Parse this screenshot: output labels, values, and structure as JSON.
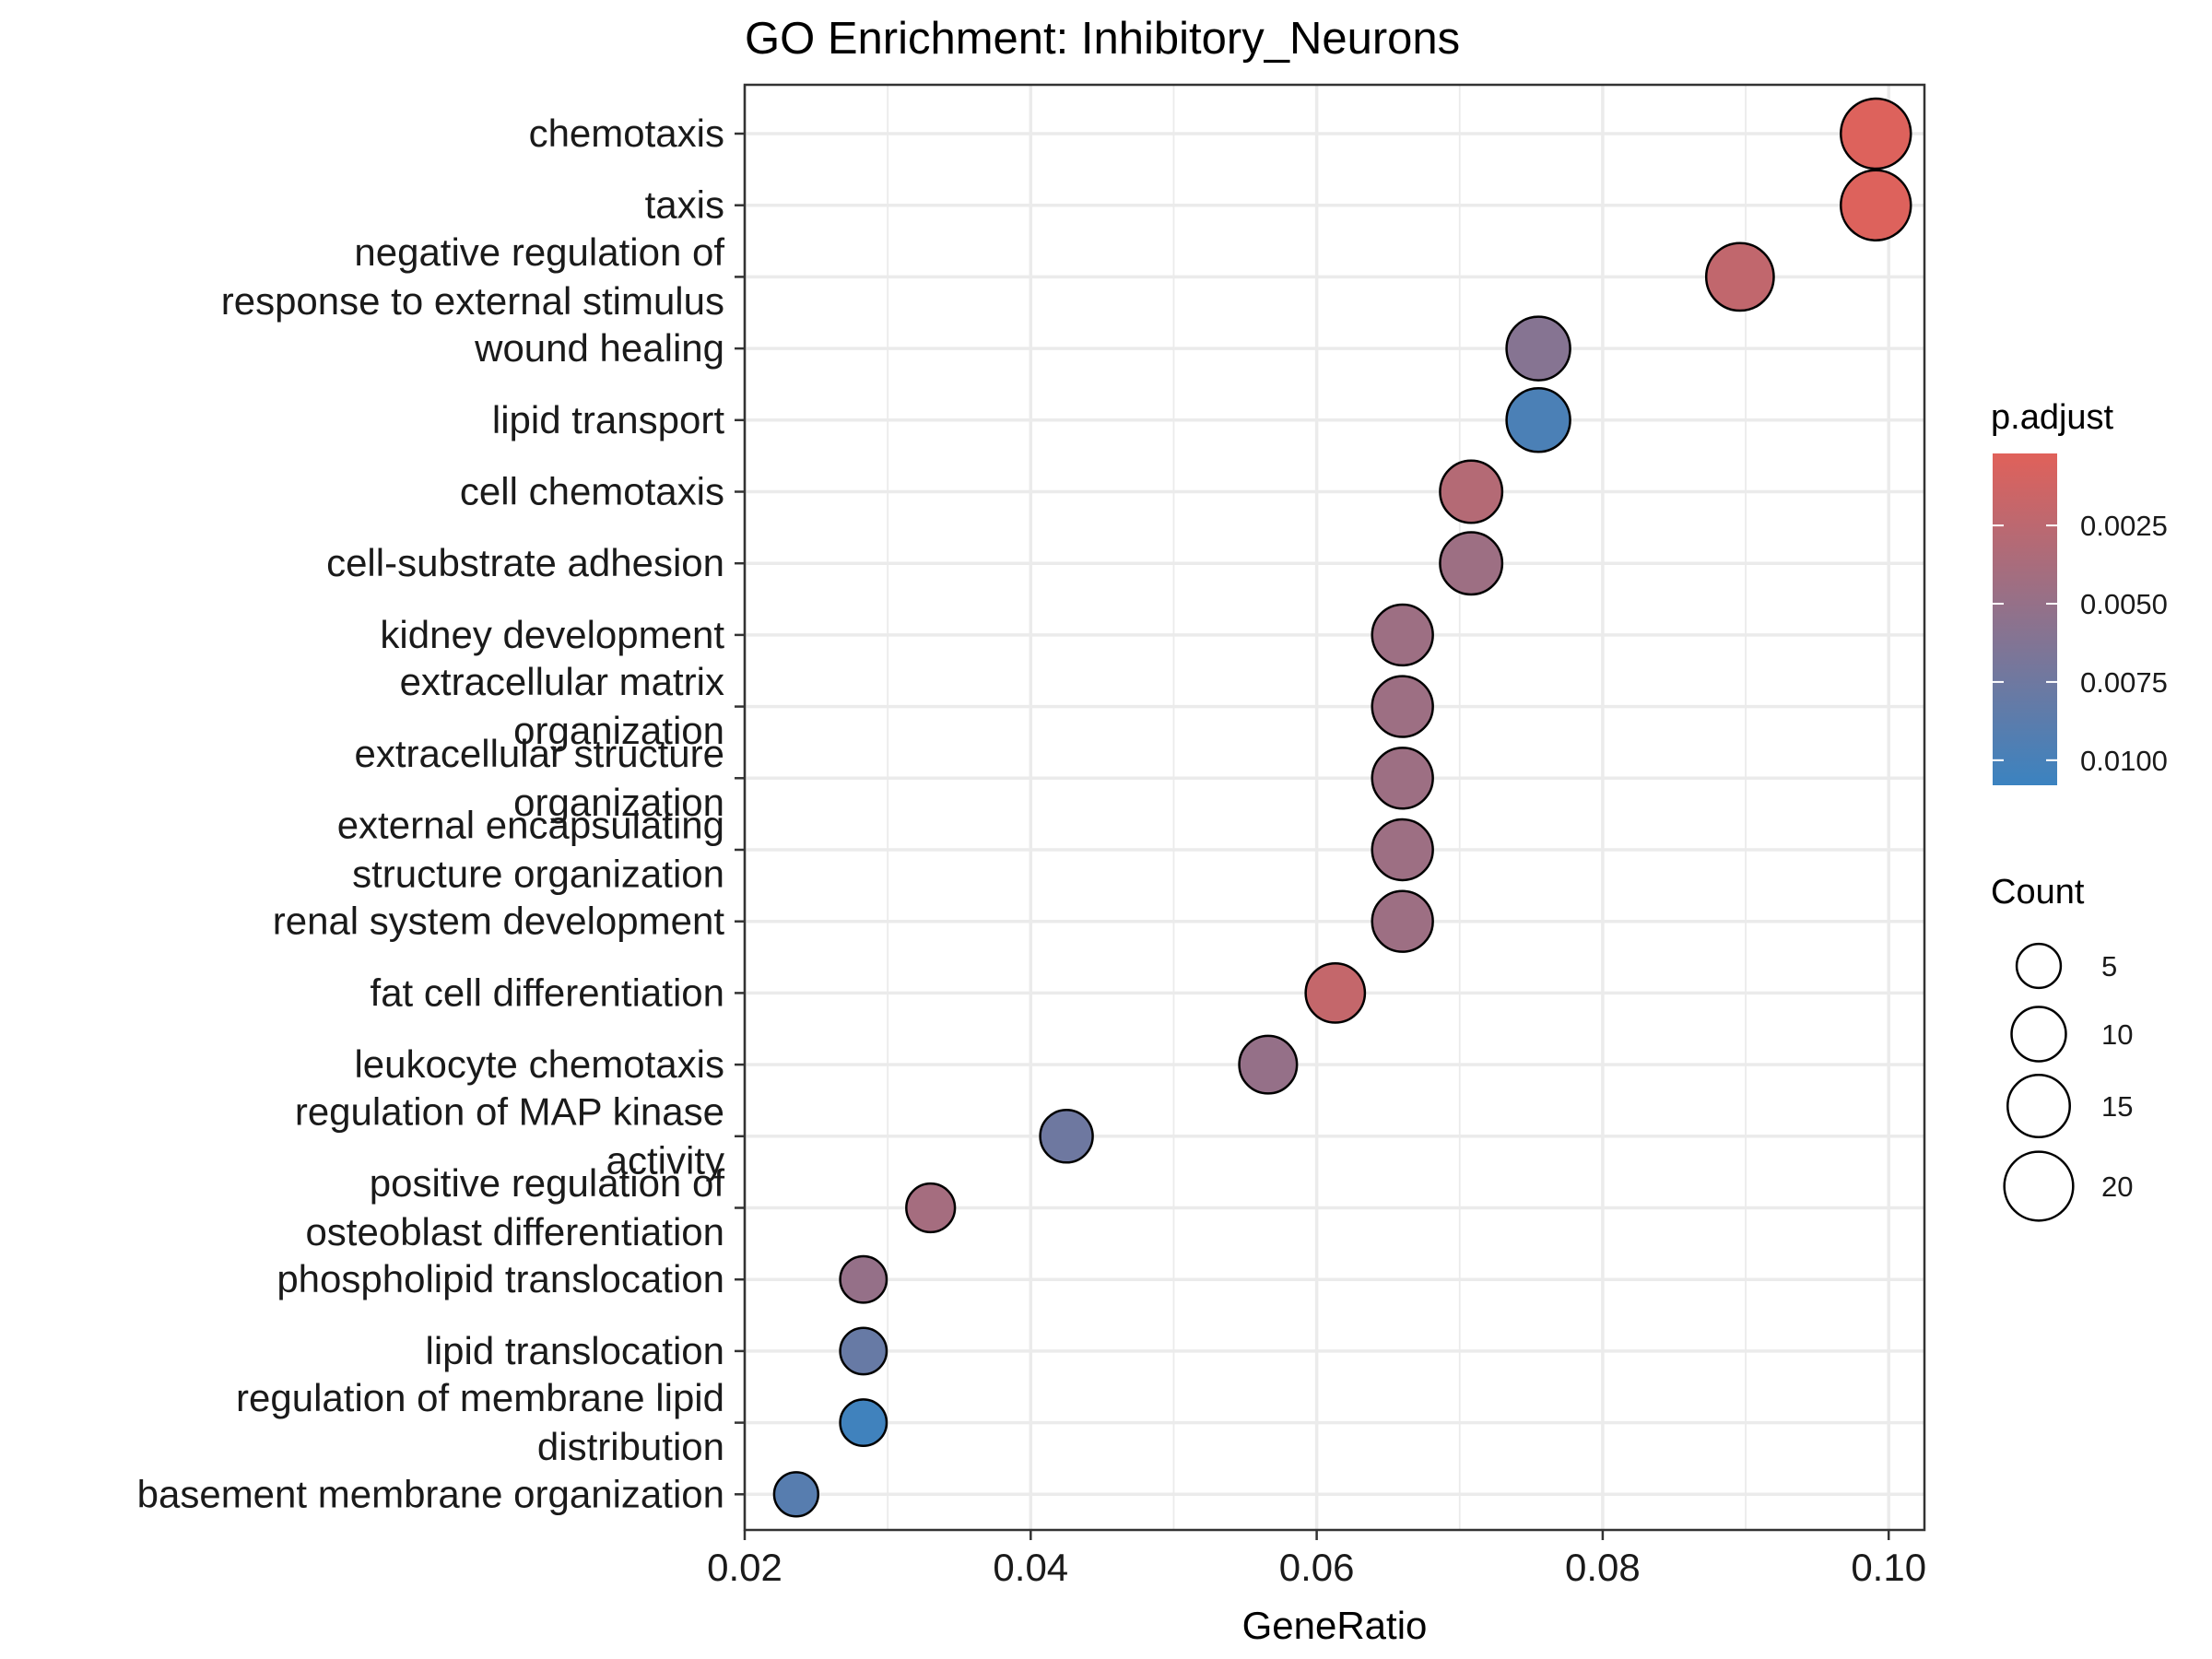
{
  "chart_data": {
    "type": "scatter",
    "title": "GO Enrichment: Inhibitory_Neurons",
    "xlabel": "GeneRatio",
    "ylabel": "",
    "xlim": [
      0.02,
      0.1025
    ],
    "xticks": [
      0.02,
      0.04,
      0.06,
      0.08,
      0.1
    ],
    "xtick_labels": [
      "0.02",
      "0.04",
      "0.06",
      "0.08",
      "0.10"
    ],
    "grid": true,
    "legend_position": "right",
    "color_legend": {
      "title": "p.adjust",
      "range": [
        0.0002,
        0.0108
      ],
      "ticks": [
        0.0025,
        0.005,
        0.0075,
        0.01
      ],
      "tick_labels": [
        "0.0025",
        "0.0050",
        "0.0075",
        "0.0100"
      ],
      "low_color": "#e0615a",
      "high_color": "#3b83c0"
    },
    "size_legend": {
      "title": "Count",
      "values": [
        5,
        10,
        15,
        20
      ],
      "labels": [
        "5",
        "10",
        "15",
        "20"
      ]
    },
    "categories": [
      {
        "label": [
          "chemotaxis"
        ],
        "gene_ratio": 0.0991,
        "count": 21,
        "p_adjust": 0.0004
      },
      {
        "label": [
          "taxis"
        ],
        "gene_ratio": 0.0991,
        "count": 21,
        "p_adjust": 0.0004
      },
      {
        "label": [
          "negative regulation of",
          "response to external stimulus"
        ],
        "gene_ratio": 0.0896,
        "count": 19,
        "p_adjust": 0.0022
      },
      {
        "label": [
          "wound healing"
        ],
        "gene_ratio": 0.0755,
        "count": 16,
        "p_adjust": 0.006
      },
      {
        "label": [
          "lipid transport"
        ],
        "gene_ratio": 0.0755,
        "count": 16,
        "p_adjust": 0.0098
      },
      {
        "label": [
          "cell chemotaxis"
        ],
        "gene_ratio": 0.0708,
        "count": 15,
        "p_adjust": 0.003
      },
      {
        "label": [
          "cell-substrate adhesion"
        ],
        "gene_ratio": 0.0708,
        "count": 15,
        "p_adjust": 0.0045
      },
      {
        "label": [
          "kidney development"
        ],
        "gene_ratio": 0.066,
        "count": 14,
        "p_adjust": 0.0045
      },
      {
        "label": [
          "extracellular matrix",
          "organization"
        ],
        "gene_ratio": 0.066,
        "count": 14,
        "p_adjust": 0.0045
      },
      {
        "label": [
          "extracellular structure",
          "organization"
        ],
        "gene_ratio": 0.066,
        "count": 14,
        "p_adjust": 0.0045
      },
      {
        "label": [
          "external encapsulating",
          "structure organization"
        ],
        "gene_ratio": 0.066,
        "count": 14,
        "p_adjust": 0.0045
      },
      {
        "label": [
          "renal system development"
        ],
        "gene_ratio": 0.066,
        "count": 14,
        "p_adjust": 0.0045
      },
      {
        "label": [
          "fat cell differentiation"
        ],
        "gene_ratio": 0.0613,
        "count": 13,
        "p_adjust": 0.002
      },
      {
        "label": [
          "leukocyte chemotaxis"
        ],
        "gene_ratio": 0.0566,
        "count": 12,
        "p_adjust": 0.005
      },
      {
        "label": [
          "regulation of MAP kinase",
          "activity"
        ],
        "gene_ratio": 0.0425,
        "count": 9,
        "p_adjust": 0.0075
      },
      {
        "label": [
          "positive regulation of",
          "osteoblast differentiation"
        ],
        "gene_ratio": 0.033,
        "count": 7,
        "p_adjust": 0.004
      },
      {
        "label": [
          "phospholipid translocation"
        ],
        "gene_ratio": 0.0283,
        "count": 6,
        "p_adjust": 0.005
      },
      {
        "label": [
          "lipid translocation"
        ],
        "gene_ratio": 0.0283,
        "count": 6,
        "p_adjust": 0.008
      },
      {
        "label": [
          "regulation of membrane lipid",
          "distribution"
        ],
        "gene_ratio": 0.0283,
        "count": 6,
        "p_adjust": 0.0105
      },
      {
        "label": [
          "basement membrane organization"
        ],
        "gene_ratio": 0.0236,
        "count": 5,
        "p_adjust": 0.009
      }
    ]
  }
}
